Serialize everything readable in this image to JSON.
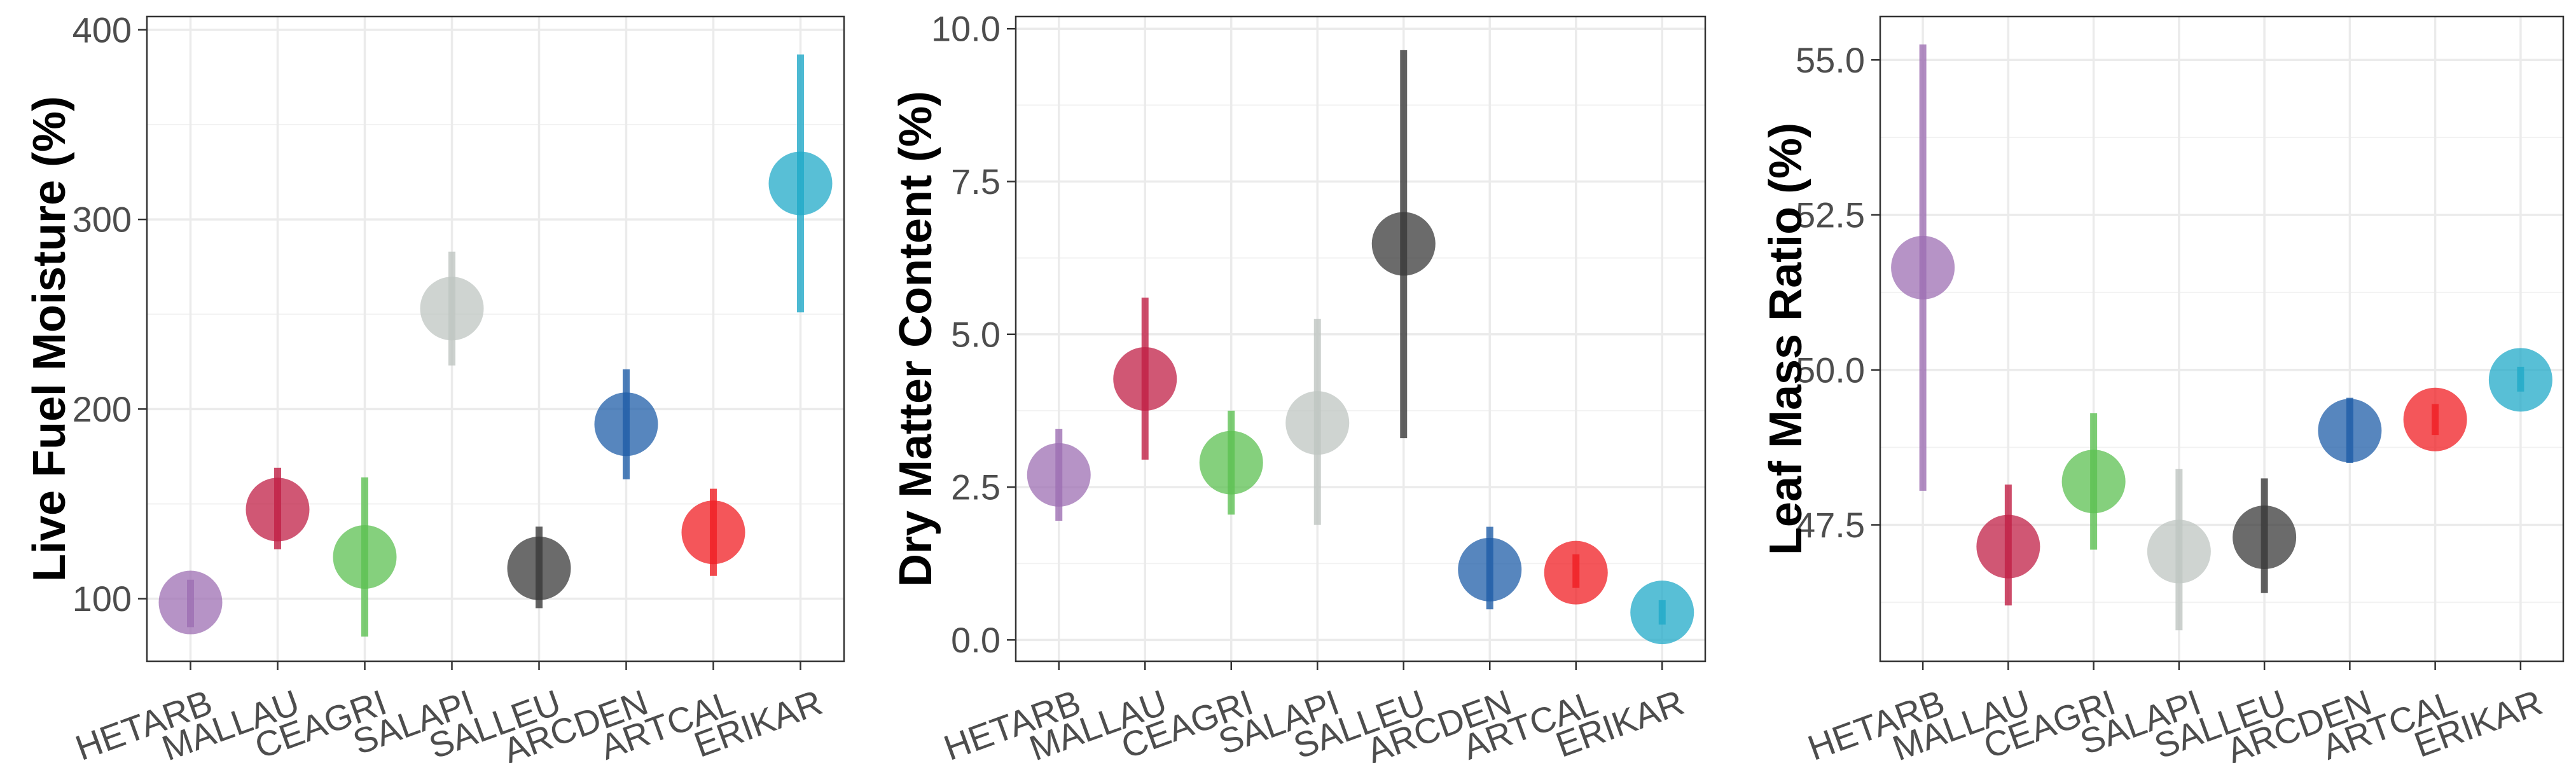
{
  "colors": {
    "HETARB": "#9e6fb3",
    "MALLAU": "#c01f45",
    "CEAGRI": "#5cc052",
    "SALAPI": "#bfc5c2",
    "SALLEU": "#3a3a3a",
    "ARCDEN": "#1f5ea8",
    "ARTCAL": "#f01e23",
    "ERIKAR": "#20a9c8"
  },
  "chart_data": [
    {
      "type": "scatter",
      "subtype": "point-range",
      "ylabel": "Live Fuel Moisture (%)",
      "categories": [
        "HETARB",
        "MALLAU",
        "CEAGRI",
        "SALAPI",
        "SALLEU",
        "ARCDEN",
        "ARTCAL",
        "ERIKAR"
      ],
      "values": [
        98,
        147,
        122,
        253,
        116,
        192,
        135,
        319
      ],
      "lower": [
        85,
        126,
        80,
        223,
        95,
        163,
        112,
        251
      ],
      "upper": [
        110,
        169,
        164,
        283,
        138,
        221,
        158,
        387
      ],
      "ylim": [
        67,
        407
      ],
      "yticks": [
        100,
        200,
        300,
        400
      ],
      "ytick_labels": [
        "100",
        "200",
        "300",
        "400"
      ],
      "grid": true
    },
    {
      "type": "scatter",
      "subtype": "point-range",
      "ylabel": "Dry Matter Content (%)",
      "categories": [
        "HETARB",
        "MALLAU",
        "CEAGRI",
        "SALAPI",
        "SALLEU",
        "ARCDEN",
        "ARTCAL",
        "ERIKAR"
      ],
      "values": [
        2.7,
        4.27,
        2.9,
        3.55,
        6.48,
        1.15,
        1.1,
        0.45
      ],
      "lower": [
        1.95,
        2.95,
        2.05,
        1.88,
        3.3,
        0.5,
        0.85,
        0.25
      ],
      "upper": [
        3.45,
        5.6,
        3.75,
        5.25,
        9.65,
        1.85,
        1.4,
        0.65
      ],
      "ylim": [
        -0.35,
        10.2
      ],
      "yticks": [
        0.0,
        2.5,
        5.0,
        7.5,
        10.0
      ],
      "ytick_labels": [
        "0.0",
        "2.5",
        "5.0",
        "7.5",
        "10.0"
      ],
      "grid": true
    },
    {
      "type": "scatter",
      "subtype": "point-range",
      "ylabel": "Leaf Mass Ratio (%)",
      "categories": [
        "HETARB",
        "MALLAU",
        "CEAGRI",
        "SALAPI",
        "SALLEU",
        "ARCDEN",
        "ARTCAL",
        "ERIKAR"
      ],
      "values": [
        51.65,
        47.15,
        48.2,
        47.07,
        47.3,
        49.02,
        49.2,
        49.84
      ],
      "lower": [
        48.05,
        46.2,
        47.1,
        45.8,
        46.4,
        48.5,
        48.95,
        49.65
      ],
      "upper": [
        55.25,
        48.15,
        49.3,
        48.4,
        48.25,
        49.55,
        49.45,
        50.05
      ],
      "ylim": [
        45.3,
        55.7
      ],
      "yticks": [
        47.5,
        50.0,
        52.5,
        55.0
      ],
      "ytick_labels": [
        "47.5",
        "50.0",
        "52.5",
        "55.0"
      ],
      "grid": true
    }
  ]
}
